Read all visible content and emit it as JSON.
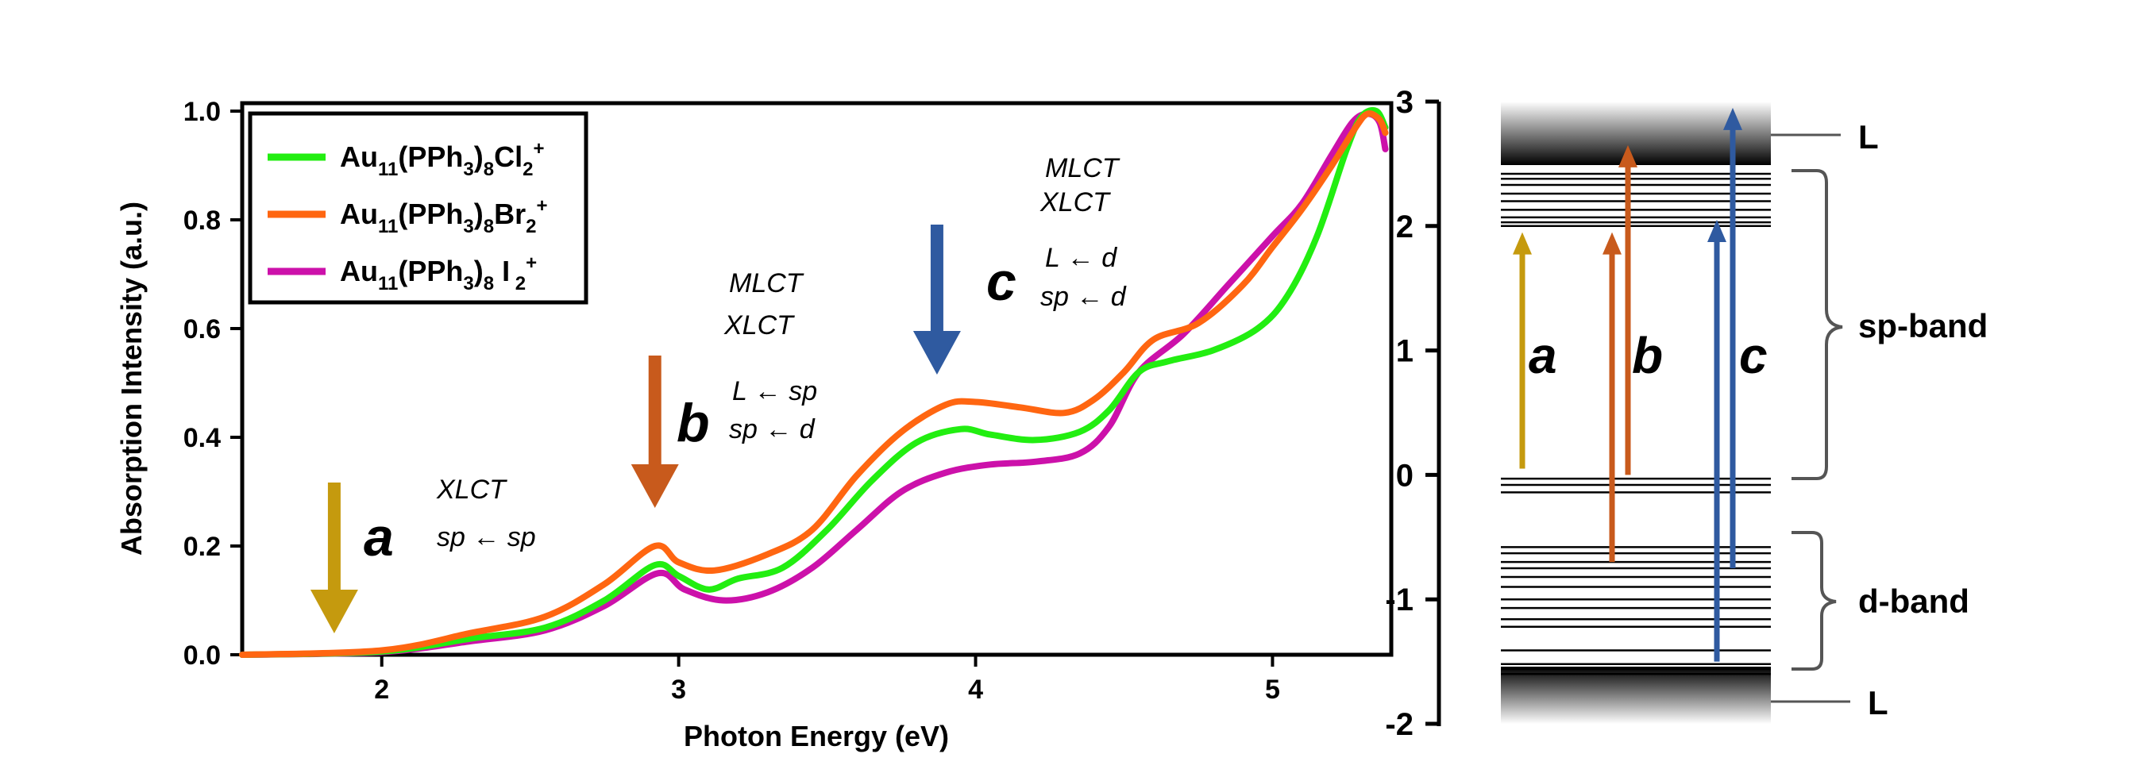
{
  "chart_data": [
    {
      "type": "line",
      "xlabel": "Photon Energy (eV)",
      "ylabel": "Absorption Intensity (a.u.)",
      "xlim": [
        1.53,
        5.4
      ],
      "ylim": [
        0,
        1.0
      ],
      "xticks": [
        "2",
        "3",
        "4",
        "5"
      ],
      "yticks": [
        "0.0",
        "0.2",
        "0.4",
        "0.6",
        "0.8",
        "1.0"
      ],
      "grid": false,
      "legend_position": "top-left",
      "series": [
        {
          "name": "Au11(PPh3)8Cl2+",
          "legend": {
            "a": "Au",
            "s1": "11",
            "b": "(PPh",
            "s2": "3",
            "c": ")",
            "s3": "8",
            "d": "Cl",
            "s4": "2",
            "sup": "+"
          },
          "color": "#22ee11",
          "x": [
            1.53,
            2.0,
            2.3,
            2.55,
            2.75,
            2.92,
            3.0,
            3.1,
            3.2,
            3.35,
            3.5,
            3.65,
            3.8,
            3.95,
            4.05,
            4.2,
            4.35,
            4.45,
            4.55,
            4.65,
            4.8,
            4.95,
            5.05,
            5.15,
            5.25,
            5.3,
            5.35,
            5.38
          ],
          "y": [
            0.0,
            0.006,
            0.03,
            0.05,
            0.1,
            0.165,
            0.145,
            0.12,
            0.14,
            0.16,
            0.23,
            0.32,
            0.39,
            0.415,
            0.405,
            0.395,
            0.41,
            0.45,
            0.52,
            0.54,
            0.56,
            0.6,
            0.66,
            0.77,
            0.93,
            0.99,
            1.0,
            0.97
          ]
        },
        {
          "name": "Au11(PPh3)8Br2+",
          "legend": {
            "a": "Au",
            "s1": "11",
            "b": "(PPh",
            "s2": "3",
            "c": ")",
            "s3": "8",
            "d": "Br",
            "s4": "2",
            "sup": "+"
          },
          "color": "#ff6611",
          "x": [
            1.53,
            2.0,
            2.3,
            2.55,
            2.75,
            2.92,
            3.0,
            3.12,
            3.3,
            3.45,
            3.6,
            3.75,
            3.9,
            4.0,
            4.15,
            4.3,
            4.4,
            4.5,
            4.6,
            4.75,
            4.9,
            5.0,
            5.1,
            5.2,
            5.28,
            5.32,
            5.36,
            5.38
          ],
          "y": [
            0.0,
            0.008,
            0.04,
            0.07,
            0.13,
            0.2,
            0.17,
            0.155,
            0.185,
            0.23,
            0.33,
            0.41,
            0.46,
            0.465,
            0.455,
            0.445,
            0.47,
            0.52,
            0.58,
            0.61,
            0.68,
            0.75,
            0.82,
            0.9,
            0.97,
            0.995,
            0.985,
            0.96
          ]
        },
        {
          "name": "Au11(PPh3)8 I2+",
          "legend": {
            "a": "Au",
            "s1": "11",
            "b": "(PPh",
            "s2": "3",
            "c": ")",
            "s3": "8",
            "d": " I",
            "s4": " 2",
            "sup": "+"
          },
          "color": "#cc11aa",
          "x": [
            1.53,
            2.0,
            2.3,
            2.55,
            2.75,
            2.93,
            3.02,
            3.15,
            3.3,
            3.45,
            3.6,
            3.75,
            3.9,
            4.05,
            4.2,
            4.35,
            4.45,
            4.55,
            4.7,
            4.85,
            5.0,
            5.1,
            5.2,
            5.27,
            5.32,
            5.36,
            5.38
          ],
          "y": [
            0.0,
            0.005,
            0.025,
            0.045,
            0.09,
            0.15,
            0.12,
            0.1,
            0.115,
            0.16,
            0.23,
            0.3,
            0.335,
            0.35,
            0.355,
            0.37,
            0.42,
            0.52,
            0.59,
            0.68,
            0.77,
            0.83,
            0.92,
            0.98,
            0.995,
            0.98,
            0.93
          ]
        }
      ],
      "annotations": [
        {
          "letter": "a",
          "x": 1.84,
          "color": "#c59a0e",
          "lines": [
            "XLCT",
            "sp ← sp"
          ]
        },
        {
          "letter": "b",
          "x": 2.92,
          "color": "#c85a1c",
          "lines": [
            "MLCT",
            "XLCT",
            "L ← sp",
            "sp ← d"
          ]
        },
        {
          "letter": "c",
          "x": 3.87,
          "color": "#2f5aa0",
          "lines": [
            "MLCT",
            "XLCT",
            "L ← d",
            "sp ← d"
          ]
        }
      ]
    },
    {
      "type": "diagram",
      "ylim": [
        -2,
        3
      ],
      "yticks": [
        "3",
        "2",
        "1",
        "0",
        "-1",
        "-2"
      ],
      "labels": {
        "L_top": "L",
        "sp_band": "sp-band",
        "d_band": "d-band",
        "L_bottom": "L"
      },
      "transitions": [
        {
          "letter": "a",
          "color": "#c59a0e",
          "from": 0.05,
          "to": 1.95
        },
        {
          "letter": "b",
          "color": "#c85a1c",
          "from": 0.0,
          "to": 2.65,
          "from2": -0.7,
          "to2": 1.95
        },
        {
          "letter": "c",
          "color": "#2f5aa0",
          "from": -0.75,
          "to": 2.95,
          "from2": -1.5,
          "to2": 2.05
        }
      ]
    }
  ]
}
